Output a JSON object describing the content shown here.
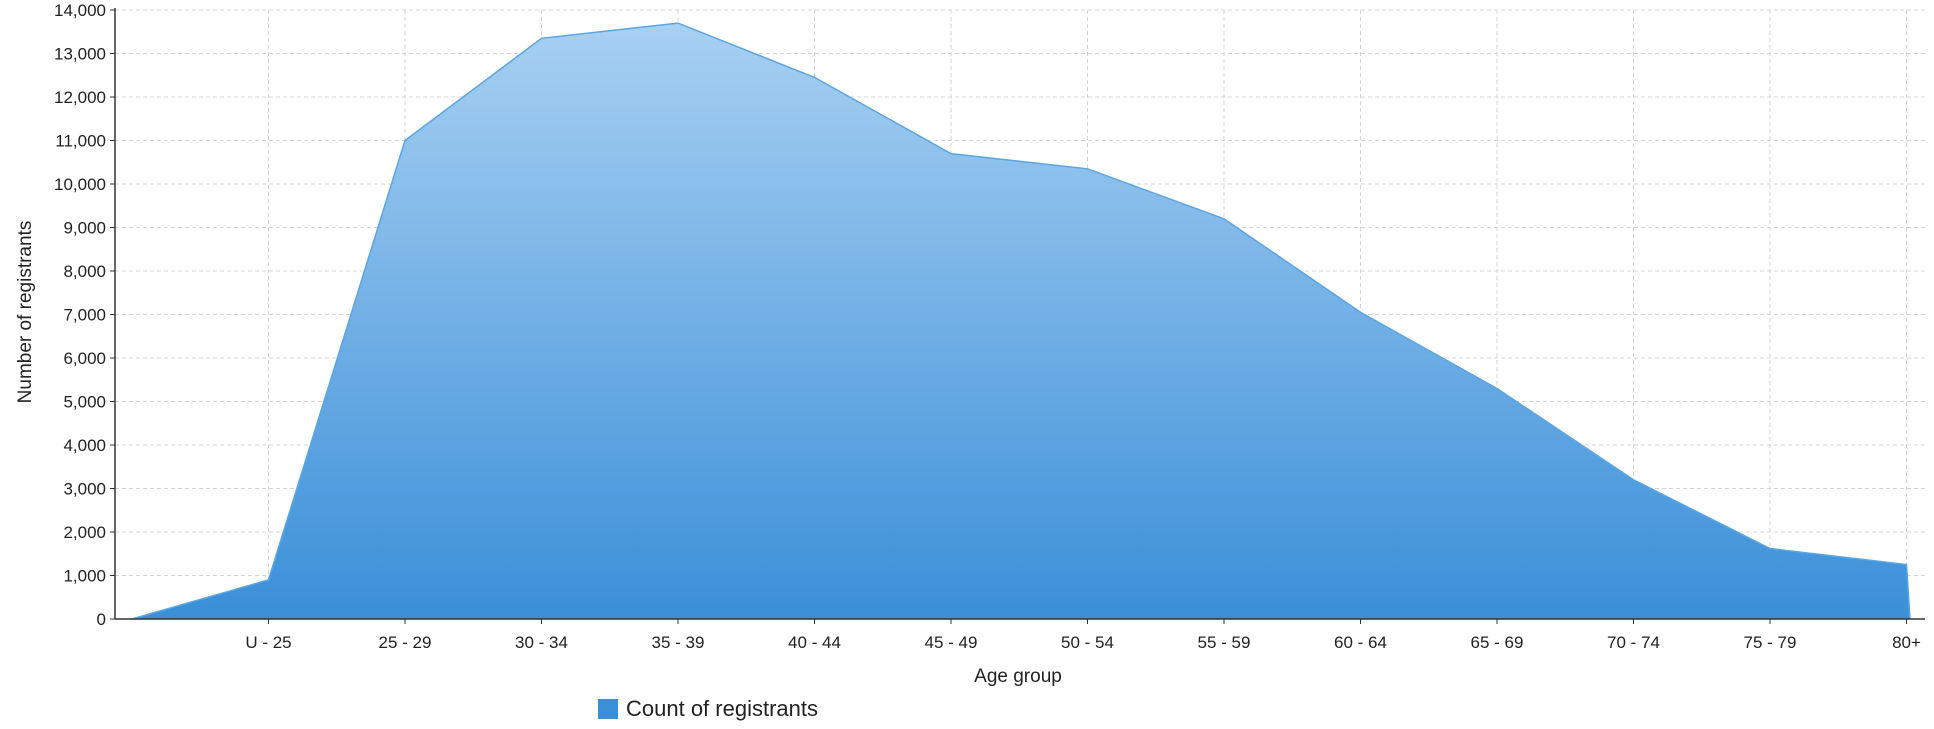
{
  "chart_data": {
    "type": "area",
    "categories": [
      "U - 25",
      "25 - 29",
      "30 - 34",
      "35 - 39",
      "40 - 44",
      "45 - 49",
      "50 - 54",
      "55 - 59",
      "60 - 64",
      "65 - 69",
      "70 - 74",
      "75 - 79",
      "80+"
    ],
    "series": [
      {
        "name": "Count of registrants",
        "values": [
          900,
          11000,
          13350,
          13700,
          12450,
          10700,
          10350,
          9200,
          7050,
          5300,
          3200,
          1620,
          1250
        ],
        "color": "#3a8fd8"
      }
    ],
    "xlabel": "Age group",
    "ylabel": "Number of registrants",
    "ylim": [
      0,
      14000
    ],
    "yticks": [
      0,
      1000,
      2000,
      3000,
      4000,
      5000,
      6000,
      7000,
      8000,
      9000,
      10000,
      11000,
      12000,
      13000,
      14000
    ],
    "ytick_labels": [
      "0",
      "1,000",
      "2,000",
      "3,000",
      "4,000",
      "5,000",
      "6,000",
      "7,000",
      "8,000",
      "9,000",
      "10,000",
      "11,000",
      "12,000",
      "13,000",
      "14,000"
    ],
    "grid": true,
    "legend_position": "bottom"
  }
}
